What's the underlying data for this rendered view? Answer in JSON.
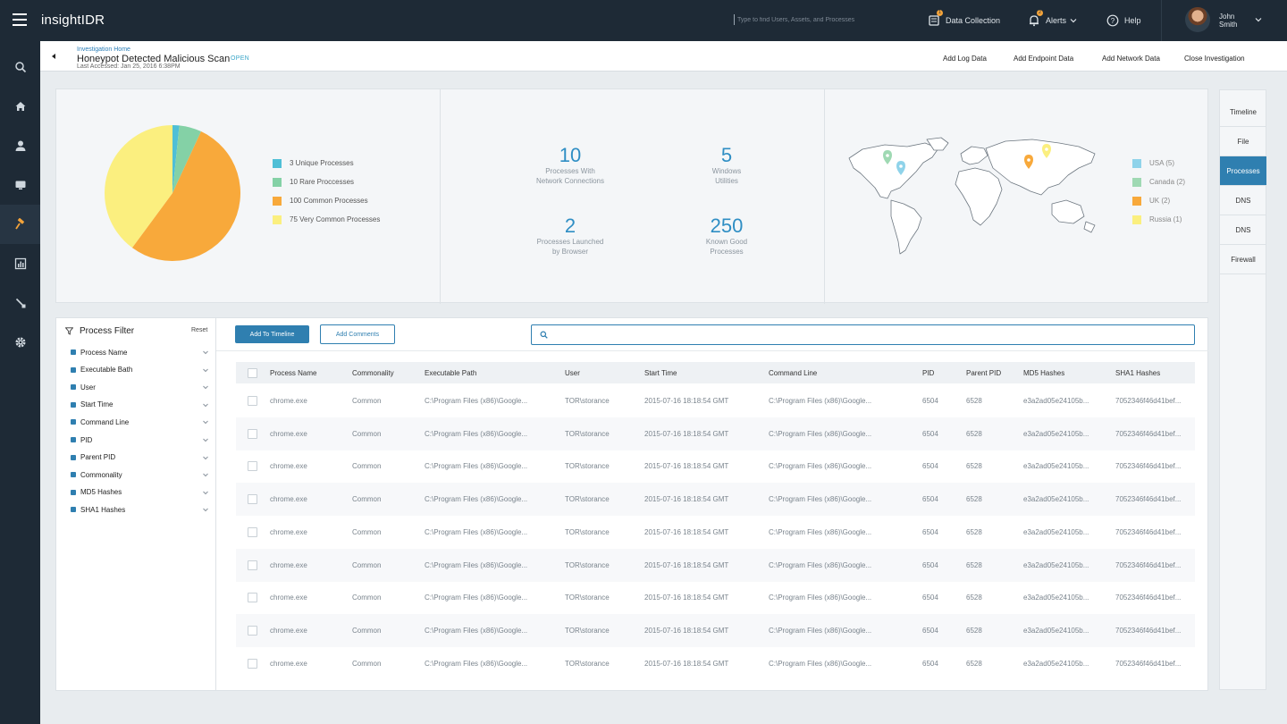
{
  "topbar": {
    "logo_prefix": "insight",
    "logo_suffix": "IDR",
    "search_placeholder": "Type to find Users, Assets, and Processes",
    "data_collection": "Data Collection",
    "data_collection_badge": "1",
    "alerts": "Alerts",
    "alerts_badge": "2",
    "help": "Help",
    "user_first": "John",
    "user_last": "Smith"
  },
  "nav": {
    "items": [
      "search-icon",
      "home-icon",
      "user-icon",
      "monitor-icon",
      "hammer-icon",
      "report-icon",
      "tool-icon",
      "gear-icon"
    ],
    "active": "hammer-icon"
  },
  "investigation": {
    "breadcrumb": "Investigation Home",
    "title": "Honeypot Detected Malicious Scan",
    "status": "OPEN",
    "last_accessed": "Last Accessed: Jan 25, 2016 6:38PM",
    "actions": [
      "Add Log Data",
      "Add Endpoint Data",
      "Add Network Data",
      "Close Investigation"
    ]
  },
  "pie": {
    "slices": [
      {
        "label": "3 Unique Processes",
        "value": 3,
        "color": "#4fbfd6"
      },
      {
        "label": "10 Rare Proccesses",
        "value": 10,
        "color": "#84d1a6"
      },
      {
        "label": "100 Common Processes",
        "value": 100,
        "color": "#f8a93b"
      },
      {
        "label": "75 Very Common Processes",
        "value": 75,
        "color": "#fbef7f"
      }
    ]
  },
  "stats": [
    {
      "value": "10",
      "label1": "Processes With",
      "label2": "Network Connections"
    },
    {
      "value": "5",
      "label1": "Windows",
      "label2": "Utilities"
    },
    {
      "value": "2",
      "label1": "Processes Launched",
      "label2": "by Browser"
    },
    {
      "value": "250",
      "label1": "Known Good",
      "label2": "Processes"
    }
  ],
  "geo_legend": [
    {
      "label": "USA (5)",
      "color": "#8fd3ea"
    },
    {
      "label": "Canada (2)",
      "color": "#9fd9b3"
    },
    {
      "label": "UK (2)",
      "color": "#f8a93b"
    },
    {
      "label": "Russia (1)",
      "color": "#fbef7f"
    }
  ],
  "side_tabs": [
    "Timeline",
    "File",
    "Processes",
    "DNS",
    "DNS",
    "Firewall"
  ],
  "side_tabs_active": "Processes",
  "filter": {
    "title": "Process Filter",
    "reset": "Reset",
    "items": [
      "Process Name",
      "Executable Bath",
      "User",
      "Start Time",
      "Command Line",
      "PID",
      "Parent PID",
      "Commonality",
      "MD5 Hashes",
      "SHA1 Hashes"
    ]
  },
  "toolbar": {
    "add_timeline": "Add To Timeline",
    "add_comments": "Add Comments",
    "search_placeholder": ""
  },
  "table": {
    "columns": [
      "Process Name",
      "Commonality",
      "Executable Path",
      "User",
      "Start Time",
      "Command Line",
      "PID",
      "Parent PID",
      "MD5 Hashes",
      "SHA1 Hashes"
    ],
    "rows": [
      [
        "chrome.exe",
        "Common",
        "C:\\Program Files (x86)\\Google...",
        "TOR\\storance",
        "2015-07-16 18:18:54 GMT",
        "C:\\Program Files (x86)\\Google...",
        "6504",
        "6528",
        "e3a2ad05e24105b...",
        "7052346f46d41bef..."
      ],
      [
        "chrome.exe",
        "Common",
        "C:\\Program Files (x86)\\Google...",
        "TOR\\storance",
        "2015-07-16 18:18:54 GMT",
        "C:\\Program Files (x86)\\Google...",
        "6504",
        "6528",
        "e3a2ad05e24105b...",
        "7052346f46d41bef..."
      ],
      [
        "chrome.exe",
        "Common",
        "C:\\Program Files (x86)\\Google...",
        "TOR\\storance",
        "2015-07-16 18:18:54 GMT",
        "C:\\Program Files (x86)\\Google...",
        "6504",
        "6528",
        "e3a2ad05e24105b...",
        "7052346f46d41bef..."
      ],
      [
        "chrome.exe",
        "Common",
        "C:\\Program Files (x86)\\Google...",
        "TOR\\storance",
        "2015-07-16 18:18:54 GMT",
        "C:\\Program Files (x86)\\Google...",
        "6504",
        "6528",
        "e3a2ad05e24105b...",
        "7052346f46d41bef..."
      ],
      [
        "chrome.exe",
        "Common",
        "C:\\Program Files (x86)\\Google...",
        "TOR\\storance",
        "2015-07-16 18:18:54 GMT",
        "C:\\Program Files (x86)\\Google...",
        "6504",
        "6528",
        "e3a2ad05e24105b...",
        "7052346f46d41bef..."
      ],
      [
        "chrome.exe",
        "Common",
        "C:\\Program Files (x86)\\Google...",
        "TOR\\storance",
        "2015-07-16 18:18:54 GMT",
        "C:\\Program Files (x86)\\Google...",
        "6504",
        "6528",
        "e3a2ad05e24105b...",
        "7052346f46d41bef..."
      ],
      [
        "chrome.exe",
        "Common",
        "C:\\Program Files (x86)\\Google...",
        "TOR\\storance",
        "2015-07-16 18:18:54 GMT",
        "C:\\Program Files (x86)\\Google...",
        "6504",
        "6528",
        "e3a2ad05e24105b...",
        "7052346f46d41bef..."
      ],
      [
        "chrome.exe",
        "Common",
        "C:\\Program Files (x86)\\Google...",
        "TOR\\storance",
        "2015-07-16 18:18:54 GMT",
        "C:\\Program Files (x86)\\Google...",
        "6504",
        "6528",
        "e3a2ad05e24105b...",
        "7052346f46d41bef..."
      ],
      [
        "chrome.exe",
        "Common",
        "C:\\Program Files (x86)\\Google...",
        "TOR\\storance",
        "2015-07-16 18:18:54 GMT",
        "C:\\Program Files (x86)\\Google...",
        "6504",
        "6528",
        "e3a2ad05e24105b...",
        "7052346f46d41bef..."
      ]
    ]
  },
  "colors": {
    "topbar": "#1e2a36",
    "accent": "#2f7fb0",
    "stat_number": "#2f8ec4"
  }
}
